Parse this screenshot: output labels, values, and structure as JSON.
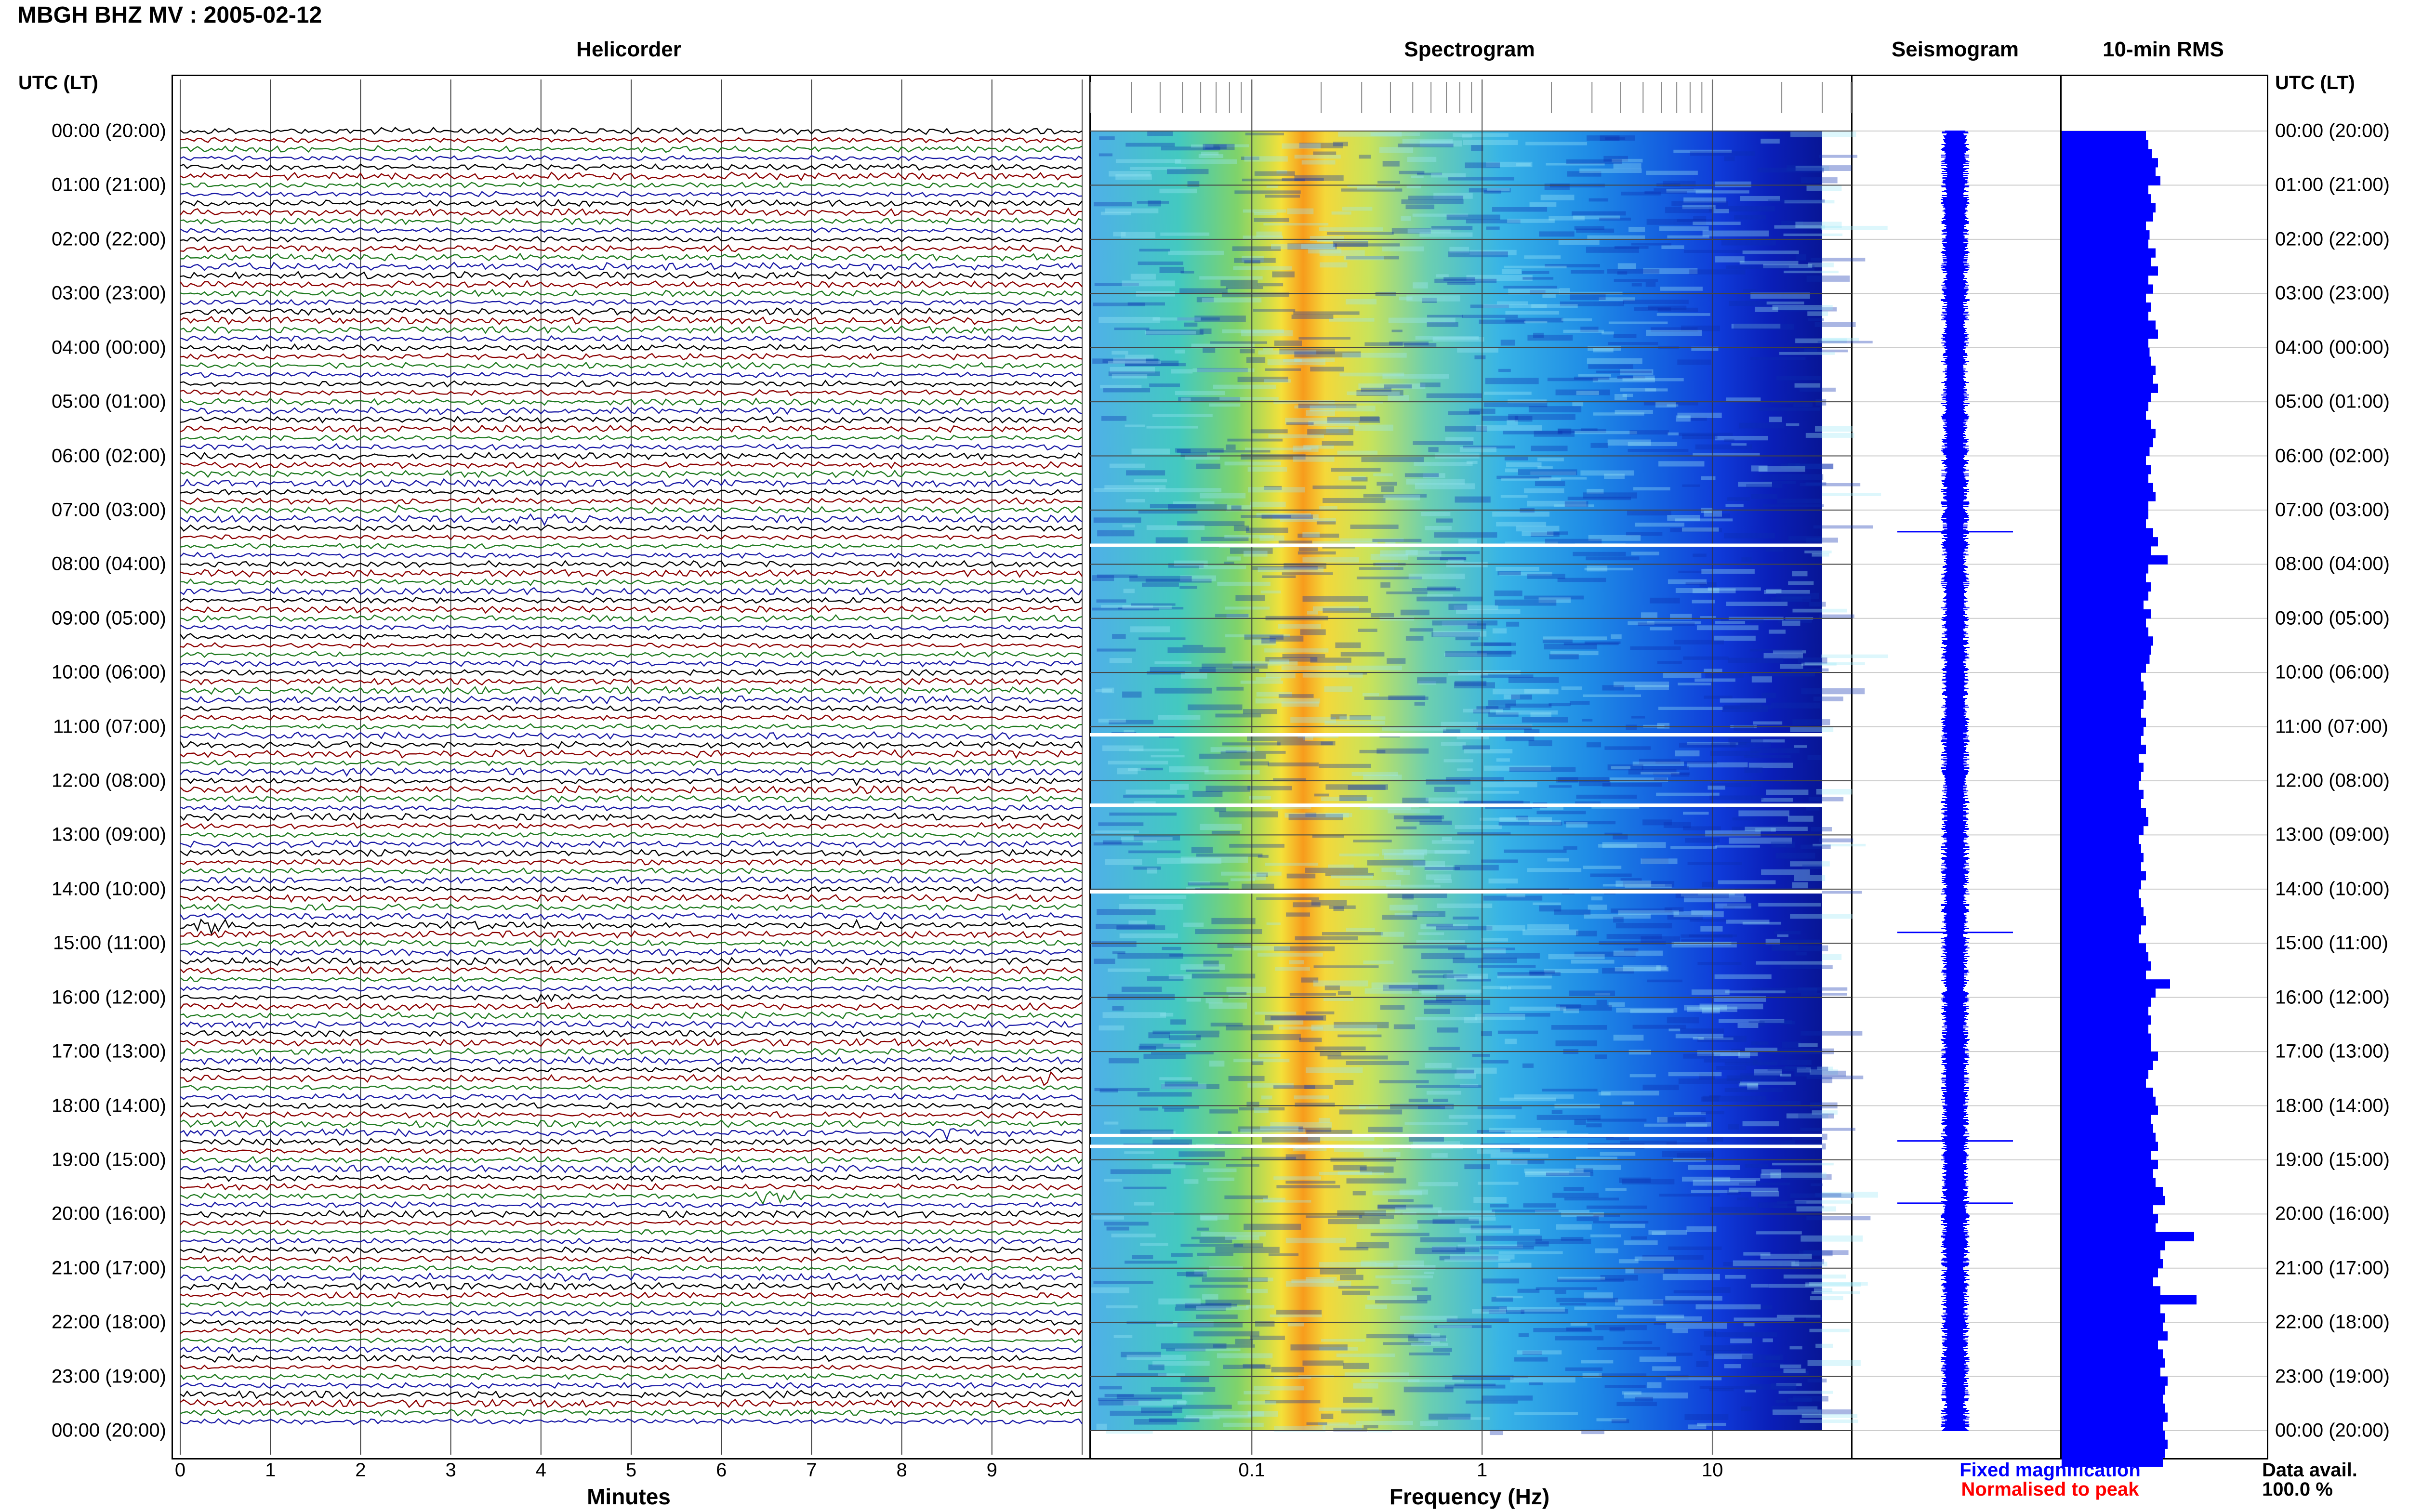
{
  "title": "MBGH BHZ MV : 2005-02-12",
  "tz_label_left": "UTC (LT)",
  "tz_label_right": "UTC (LT)",
  "hour_labels": [
    "00:00 (20:00)",
    "01:00 (21:00)",
    "02:00 (22:00)",
    "03:00 (23:00)",
    "04:00 (00:00)",
    "05:00 (01:00)",
    "06:00 (02:00)",
    "07:00 (03:00)",
    "08:00 (04:00)",
    "09:00 (05:00)",
    "10:00 (06:00)",
    "11:00 (07:00)",
    "12:00 (08:00)",
    "13:00 (09:00)",
    "14:00 (10:00)",
    "15:00 (11:00)",
    "16:00 (12:00)",
    "17:00 (13:00)",
    "18:00 (14:00)",
    "19:00 (15:00)",
    "20:00 (16:00)",
    "21:00 (17:00)",
    "22:00 (18:00)",
    "23:00 (19:00)",
    "00:00 (20:00)"
  ],
  "legend": {
    "fixed": "Fixed magnification",
    "normalised": "Normalised to peak",
    "fixed_color": "#0000ff",
    "normalised_color": "#ff0000"
  },
  "data_avail": {
    "label": "Data avail.",
    "value": "100.0 %"
  },
  "colors": {
    "trace_cycle": [
      "#000000",
      "#8b0000",
      "#1f7a1f",
      "#1a1aa6"
    ],
    "rms_bar": "#0000ff",
    "seis": "#0000ff"
  },
  "chart_data": [
    {
      "type": "line",
      "title": "Helicorder",
      "xlabel": "Minutes",
      "ylabel": "",
      "x_ticks": [
        "0",
        "1",
        "2",
        "3",
        "4",
        "5",
        "6",
        "7",
        "8",
        "9"
      ],
      "xlim": [
        0,
        10
      ],
      "rows_per_hour": 6,
      "events": [
        {
          "hour": 3,
          "row": 0,
          "minute": 3.4,
          "color": "#1a1aa6",
          "amp": 0.8
        },
        {
          "hour": 7,
          "row": 0,
          "minute": 2.3,
          "color": "#8b0000",
          "amp": 0.9
        },
        {
          "hour": 7,
          "row": 1,
          "minute": 3.95,
          "color": "#000000",
          "amp": 2.2
        },
        {
          "hour": 12,
          "row": 0,
          "minute": 7.4,
          "color": "#000000",
          "amp": 1.0
        },
        {
          "hour": 14,
          "row": 4,
          "minute": 0.4,
          "color": "#000000",
          "amp": 2.0
        },
        {
          "hour": 14,
          "row": 4,
          "minute": 3.3,
          "color": "#000000",
          "amp": 0.7
        },
        {
          "hour": 14,
          "row": 4,
          "minute": 7.5,
          "color": "#000000",
          "amp": 0.7
        },
        {
          "hour": 15,
          "row": 0,
          "minute": 4.2,
          "color": "#1f7a1f",
          "amp": 0.6
        },
        {
          "hour": 16,
          "row": 0,
          "minute": 4.0,
          "color": "#8b0000",
          "amp": 0.8
        },
        {
          "hour": 17,
          "row": 3,
          "minute": 9.6,
          "color": "#8b0000",
          "amp": 1.2
        },
        {
          "hour": 18,
          "row": 3,
          "minute": 8.6,
          "color": "#1f7a1f",
          "amp": 2.4
        },
        {
          "hour": 19,
          "row": 4,
          "minute": 6.6,
          "color": "#1a1aa6",
          "amp": 2.2
        }
      ]
    },
    {
      "type": "heatmap",
      "title": "Spectrogram",
      "xlabel": "Frequency (Hz)",
      "ylabel": "",
      "x_scale": "log",
      "xlim": [
        0.02,
        40
      ],
      "x_ticks": [
        "0.1",
        "1",
        "10"
      ],
      "colormap": "jet",
      "peak_band_hz": [
        0.15,
        0.5
      ],
      "data_gaps_hour": [
        7.65,
        11.15,
        12.45,
        14.05,
        18.55,
        18.75
      ]
    },
    {
      "type": "line",
      "title": "Seismogram",
      "xlabel": "",
      "ylabel": "",
      "spikes_hour": [
        7.4,
        14.8,
        18.65,
        19.8
      ]
    },
    {
      "type": "bar",
      "title": "10-min RMS",
      "xlabel": "",
      "ylabel": "",
      "orientation": "horizontal",
      "bins_per_hour": 6,
      "values": [
        0.7,
        0.72,
        0.75,
        0.8,
        0.78,
        0.82,
        0.72,
        0.74,
        0.78,
        0.76,
        0.7,
        0.73,
        0.72,
        0.78,
        0.74,
        0.8,
        0.72,
        0.76,
        0.7,
        0.74,
        0.72,
        0.78,
        0.8,
        0.72,
        0.73,
        0.74,
        0.78,
        0.76,
        0.8,
        0.74,
        0.72,
        0.7,
        0.74,
        0.78,
        0.76,
        0.73,
        0.7,
        0.74,
        0.72,
        0.76,
        0.78,
        0.72,
        0.72,
        0.7,
        0.76,
        0.8,
        0.74,
        0.88,
        0.72,
        0.7,
        0.74,
        0.72,
        0.68,
        0.74,
        0.7,
        0.72,
        0.76,
        0.74,
        0.73,
        0.7,
        0.66,
        0.68,
        0.7,
        0.68,
        0.66,
        0.7,
        0.68,
        0.66,
        0.7,
        0.64,
        0.68,
        0.66,
        0.64,
        0.68,
        0.66,
        0.7,
        0.72,
        0.68,
        0.64,
        0.66,
        0.68,
        0.66,
        0.7,
        0.66,
        0.64,
        0.66,
        0.68,
        0.7,
        0.66,
        0.64,
        0.7,
        0.72,
        0.74,
        0.7,
        0.9,
        0.78,
        0.74,
        0.72,
        0.74,
        0.72,
        0.74,
        0.74,
        0.8,
        0.76,
        0.72,
        0.7,
        0.76,
        0.78,
        0.8,
        0.74,
        0.76,
        0.78,
        0.8,
        0.74,
        0.8,
        0.76,
        0.78,
        0.84,
        0.86,
        0.76,
        0.8,
        0.78,
        1.1,
        0.86,
        0.82,
        0.84,
        0.8,
        0.76,
        0.82,
        1.12,
        0.82,
        0.86,
        0.84,
        0.88,
        0.8,
        0.84,
        0.86,
        0.82,
        0.88,
        0.86,
        0.84,
        0.86,
        0.88,
        0.84,
        0.86,
        0.88,
        0.86,
        0.84
      ]
    }
  ]
}
